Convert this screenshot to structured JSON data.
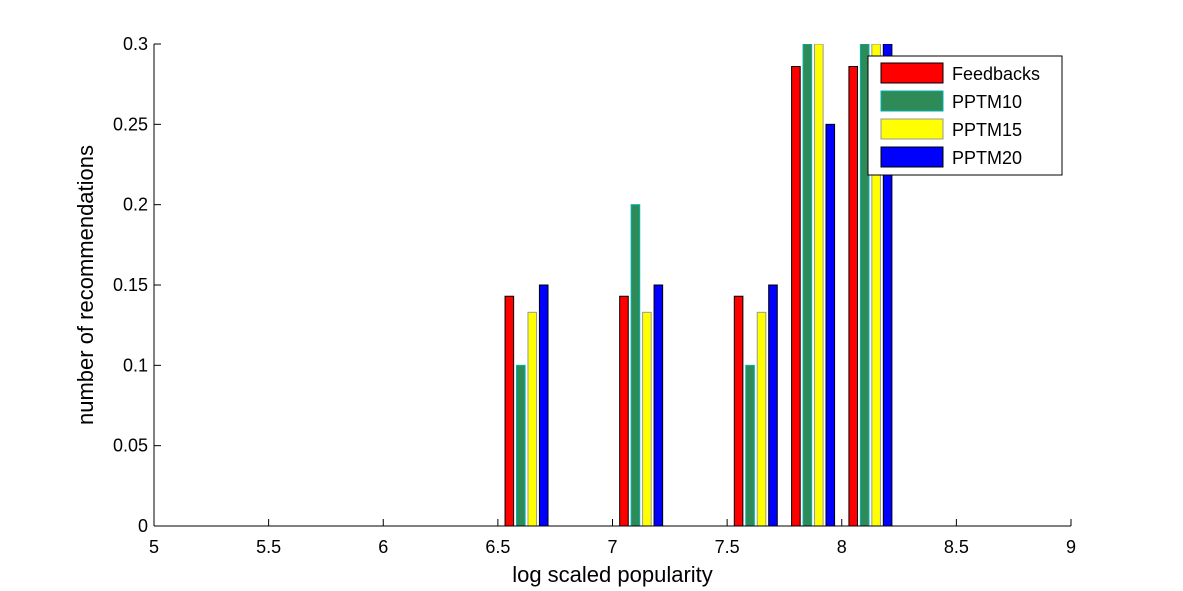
{
  "chart_data": {
    "type": "bar",
    "title": "",
    "xlabel": "log scaled popularity",
    "ylabel": "number of recommendations",
    "xlim": [
      5,
      9
    ],
    "ylim": [
      0,
      0.3
    ],
    "xticks": [
      "5",
      "5.5",
      "6",
      "6.5",
      "7",
      "7.5",
      "8",
      "8.5",
      "9"
    ],
    "yticks": [
      "0",
      "0.05",
      "0.1",
      "0.15",
      "0.2",
      "0.25",
      "0.3"
    ],
    "grid": false,
    "legend": "top-right",
    "x": [
      5.125,
      5.375,
      5.625,
      5.875,
      6.125,
      6.375,
      6.625,
      6.875,
      7.125,
      7.375,
      7.625,
      7.875,
      8.125,
      8.375,
      8.625,
      8.875
    ],
    "series": [
      {
        "name": "Feedbacks",
        "color": "#ff0000",
        "edge": "#000000",
        "values": [
          0,
          0,
          0,
          0,
          0,
          0,
          0.143,
          0,
          0.143,
          0,
          0.143,
          0.286,
          0.286,
          0,
          0,
          0
        ]
      },
      {
        "name": "PPTM10",
        "color": "#2e8b57",
        "edge": "#00b2b2",
        "values": [
          0,
          0,
          0,
          0,
          0,
          0,
          0.1,
          0,
          0.2,
          0,
          0.1,
          0.3,
          0.3,
          0,
          0,
          0
        ]
      },
      {
        "name": "PPTM15",
        "color": "#ffff00",
        "edge": "#999999",
        "values": [
          0,
          0,
          0,
          0,
          0,
          0,
          0.133,
          0,
          0.133,
          0,
          0.133,
          0.3,
          0.3,
          0,
          0,
          0
        ]
      },
      {
        "name": "PPTM20",
        "color": "#0000ff",
        "edge": "#000000",
        "values": [
          0,
          0,
          0,
          0,
          0,
          0,
          0.15,
          0,
          0.15,
          0,
          0.15,
          0.25,
          0.3,
          0,
          0,
          0
        ]
      }
    ]
  }
}
